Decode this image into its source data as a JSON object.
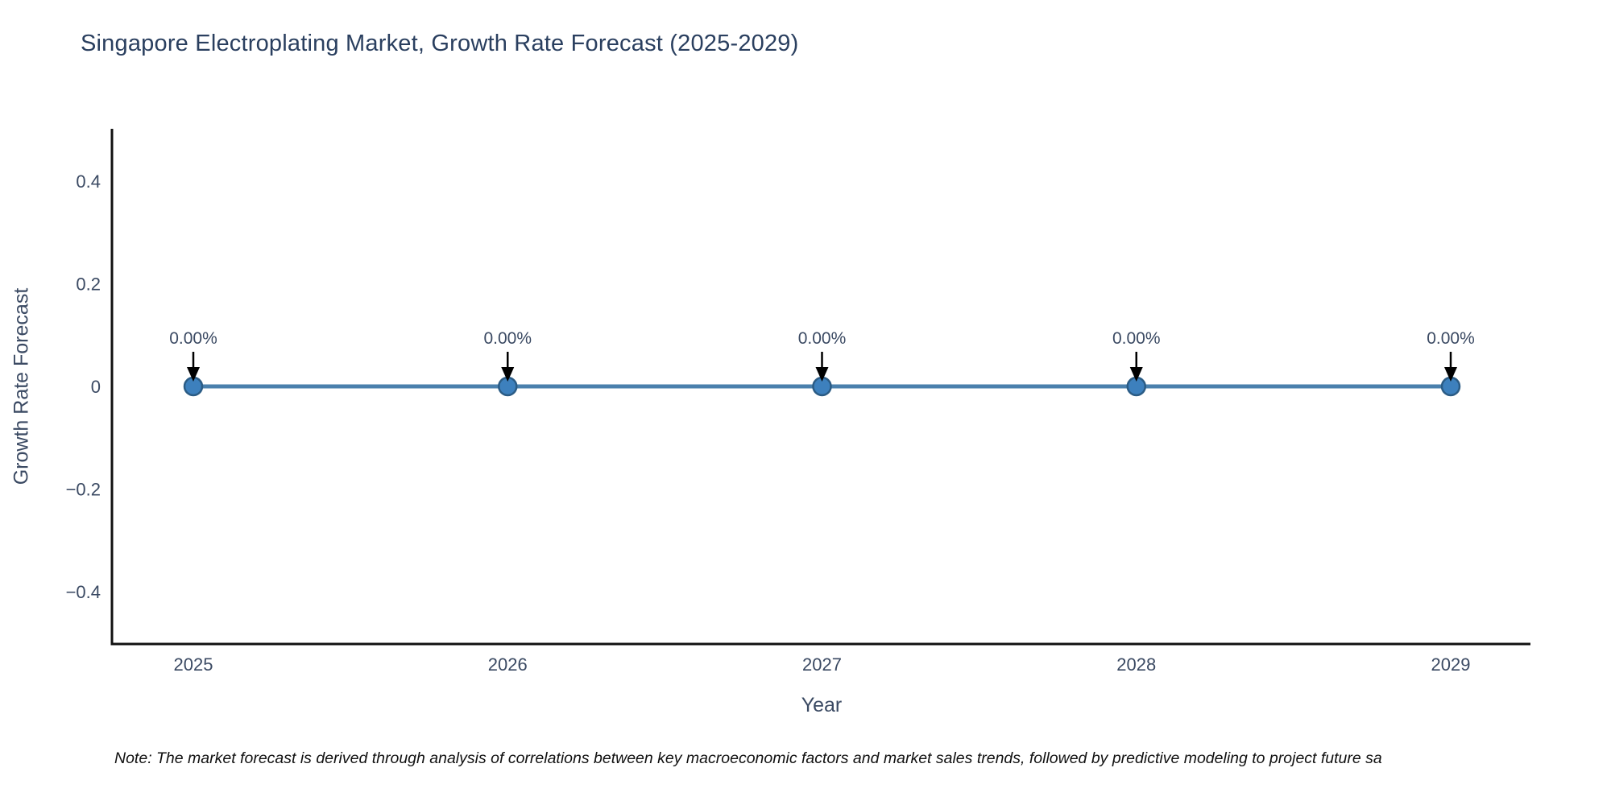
{
  "title": "Singapore Electroplating Market, Growth Rate Forecast (2025-2029)",
  "note": "Note: The market forecast is derived through analysis of correlations between key macroeconomic factors and market sales trends, followed by predictive modeling to project future sa",
  "chart_data": {
    "type": "line",
    "title": "Singapore Electroplating Market, Growth Rate Forecast (2025-2029)",
    "xlabel": "Year",
    "ylabel": "Growth Rate Forecast",
    "categories": [
      "2025",
      "2026",
      "2027",
      "2028",
      "2029"
    ],
    "series": [
      {
        "name": "Growth Rate Forecast",
        "values": [
          0,
          0,
          0,
          0,
          0
        ]
      }
    ],
    "point_labels": [
      "0.00%",
      "0.00%",
      "0.00%",
      "0.00%",
      "0.00%"
    ],
    "ytick_values": [
      0.4,
      0.2,
      0,
      -0.2,
      -0.4
    ],
    "ytick_labels": [
      "0.4",
      "0.2",
      "0",
      "−0.2",
      "−0.4"
    ],
    "ylim": [
      -0.5,
      0.5
    ],
    "grid": false,
    "legend": false,
    "colors": {
      "line": "#4a80ad",
      "marker_fill": "#3d80bd",
      "marker_edge": "#2b5c85",
      "annotation_arrow": "#000000",
      "annotation_text": "#3b4a63",
      "tick_text": "#3b4a63",
      "axis_spine": "#111111"
    }
  }
}
